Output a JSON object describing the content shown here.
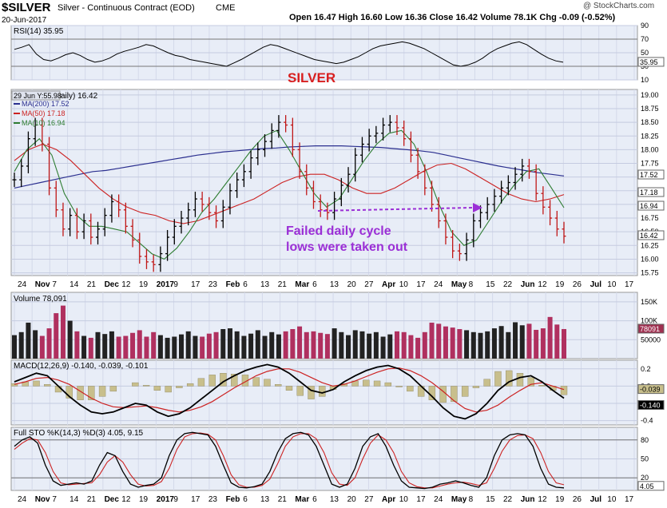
{
  "header": {
    "symbol": "$SILVER",
    "description": "Silver - Continuous Contract (EOD)",
    "exchange": "CME",
    "date": "20-Jun-2017",
    "watermark": "@ StockCharts.com",
    "ohlc_text": "Open 16.47  High 16.60  Low 16.36  Close 16.42  Volume 78.1K  Chg -0.09 (-0.52%)",
    "open": 16.47,
    "high": 16.6,
    "low": 16.36,
    "close": 16.42,
    "volume": "78.1K",
    "change": "-0.09 (-0.52%)"
  },
  "colors": {
    "price_bars": "#000000",
    "ma200": "#2b2f8f",
    "ma50": "#cc2222",
    "ma10": "#2e7d32",
    "volume_up": "#222222",
    "volume_down": "#b0305f",
    "annotation_silver": "#d81f1f",
    "annotation_text": "#9b2fd6",
    "annotation_arrow": "#9b2fd6",
    "panel_bg": "#e8edf7",
    "macd_hist": "#c8bf8c",
    "sto_d": "#cc2222"
  },
  "annotations": {
    "title": "SILVER",
    "note_line1": "Failed daily cycle",
    "note_line2": "lows were taken out"
  },
  "chart_data": [
    {
      "type": "line",
      "panel": "RSI",
      "legend": "RSI(14) 35.95",
      "ylim": [
        10,
        90
      ],
      "ticks": [
        10,
        30,
        50,
        70,
        90
      ],
      "last_value_label": "35.95",
      "series": [
        {
          "name": "RSI(14)",
          "values": [
            55,
            58,
            62,
            48,
            40,
            38,
            42,
            47,
            50,
            46,
            40,
            36,
            38,
            42,
            48,
            52,
            55,
            58,
            62,
            60,
            55,
            50,
            46,
            44,
            40,
            38,
            36,
            34,
            32,
            30,
            35,
            40,
            46,
            52,
            58,
            62,
            60,
            56,
            52,
            48,
            44,
            40,
            38,
            36,
            34,
            36,
            40,
            44,
            50,
            56,
            60,
            62,
            64,
            66,
            64,
            60,
            56,
            50,
            44,
            38,
            32,
            30,
            32,
            36,
            42,
            50,
            56,
            60,
            64,
            66,
            62,
            55,
            48,
            42,
            38,
            36
          ]
        }
      ]
    },
    {
      "type": "ohlc",
      "panel": "Price",
      "overlay_label": "29 Jun Y:55.98",
      "legend_title": "aily) 16.42",
      "ylim": [
        15.7,
        19.1
      ],
      "ticks": [
        15.75,
        16.0,
        16.25,
        16.5,
        16.75,
        17.0,
        17.25,
        17.5,
        17.75,
        18.0,
        18.25,
        18.5,
        18.75,
        19.0
      ],
      "x_labels": [
        "24",
        "Nov",
        "7",
        "14",
        "21",
        "Dec",
        "12",
        "19",
        "2017",
        "9",
        "17",
        "23",
        "Feb",
        "6",
        "13",
        "21",
        "Mar",
        "6",
        "13",
        "20",
        "27",
        "Apr",
        "10",
        "17",
        "24",
        "May",
        "8",
        "15",
        "22",
        "Jun",
        "12",
        "19",
        "26",
        "Jul",
        "10",
        "17"
      ],
      "close": [
        17.45,
        17.7,
        18.2,
        18.45,
        18.1,
        17.3,
        16.9,
        16.55,
        16.8,
        16.5,
        16.7,
        16.4,
        16.55,
        16.8,
        17.05,
        16.9,
        16.6,
        16.35,
        16.05,
        15.95,
        15.9,
        16.1,
        16.4,
        16.6,
        16.75,
        16.9,
        17.1,
        17.0,
        16.85,
        16.7,
        16.95,
        17.25,
        17.45,
        17.6,
        17.85,
        18.0,
        18.15,
        18.35,
        18.5,
        18.45,
        18.0,
        17.6,
        17.3,
        17.05,
        16.9,
        16.85,
        17.1,
        17.35,
        17.55,
        17.9,
        18.1,
        18.25,
        18.3,
        18.45,
        18.5,
        18.4,
        18.2,
        17.9,
        17.6,
        17.3,
        17.0,
        16.7,
        16.4,
        16.15,
        16.1,
        16.35,
        16.7,
        16.85,
        17.0,
        17.15,
        17.3,
        17.4,
        17.55,
        17.7,
        17.6,
        17.2,
        16.95,
        16.75,
        16.55,
        16.42
      ],
      "high_low_spread": 0.22,
      "series": [
        {
          "name": "MA(200) 17.52",
          "values": [
            17.3,
            17.35,
            17.4,
            17.45,
            17.5,
            17.55,
            17.6,
            17.62,
            17.66,
            17.7,
            17.74,
            17.78,
            17.82,
            17.86,
            17.9,
            17.93,
            17.96,
            17.98,
            18.0,
            18.02,
            18.03,
            18.05,
            18.06,
            18.07,
            18.07,
            18.07,
            18.06,
            18.05,
            18.04,
            18.02,
            18.0,
            17.98,
            17.95,
            17.9,
            17.85,
            17.8,
            17.75,
            17.7,
            17.66,
            17.62,
            17.58,
            17.55,
            17.52
          ]
        },
        {
          "name": "MA(50) 17.18",
          "values": [
            17.8,
            18.0,
            18.1,
            18.0,
            17.8,
            17.55,
            17.3,
            17.1,
            16.95,
            16.85,
            16.8,
            16.7,
            16.65,
            16.7,
            16.8,
            16.9,
            17.0,
            17.1,
            17.25,
            17.4,
            17.5,
            17.55,
            17.55,
            17.45,
            17.3,
            17.2,
            17.2,
            17.3,
            17.45,
            17.6,
            17.72,
            17.75,
            17.65,
            17.5,
            17.35,
            17.2,
            17.1,
            17.05,
            17.1,
            17.18
          ]
        },
        {
          "name": "MA(10) 16.94",
          "values": [
            17.6,
            18.0,
            18.2,
            17.9,
            17.2,
            16.8,
            16.6,
            16.6,
            16.55,
            16.5,
            16.3,
            16.1,
            16.0,
            16.2,
            16.5,
            16.85,
            17.1,
            17.4,
            17.7,
            18.0,
            18.25,
            18.35,
            18.0,
            17.6,
            17.2,
            16.95,
            17.1,
            17.45,
            17.8,
            18.1,
            18.3,
            18.35,
            18.1,
            17.6,
            17.0,
            16.5,
            16.25,
            16.35,
            16.7,
            17.05,
            17.35,
            17.6,
            17.65,
            17.3,
            16.94
          ]
        }
      ],
      "right_labels": [
        "17.52",
        "17.18",
        "16.94",
        "16.42"
      ]
    },
    {
      "type": "bar",
      "panel": "Volume",
      "legend": "Volume 78,091",
      "ylim": [
        0,
        175000
      ],
      "ticks": [
        50000,
        100000,
        150000
      ],
      "tick_labels": [
        "50000",
        "100K",
        "150K"
      ],
      "last_value_label": "78091",
      "values": [
        62000,
        70000,
        95000,
        75000,
        60000,
        80000,
        120000,
        140000,
        100000,
        72000,
        60000,
        55000,
        70000,
        65000,
        72000,
        58000,
        60000,
        68000,
        75000,
        58000,
        70000,
        62000,
        55000,
        58000,
        64000,
        72000,
        60000,
        58000,
        66000,
        70000,
        78000,
        80000,
        72000,
        60000,
        66000,
        75000,
        60000,
        70000,
        64000,
        72000,
        78000,
        85000,
        70000,
        72000,
        68000,
        65000,
        80000,
        70000,
        62000,
        75000,
        72000,
        66000,
        70000,
        58000,
        64000,
        72000,
        70000,
        62000,
        55000,
        70000,
        95000,
        92000,
        85000,
        82000,
        78000,
        75000,
        70000,
        68000,
        72000,
        80000,
        86000,
        70000,
        96000,
        88000,
        92000,
        76000,
        80000,
        110000,
        90000,
        78091
      ],
      "colors_pattern": "alternating up/down by close change"
    },
    {
      "type": "line",
      "panel": "MACD",
      "legend": "MACD(12,26,9) -0.140, -0.039, -0.101",
      "ylim": [
        -0.45,
        0.3
      ],
      "ticks": [
        -0.4,
        -0.2,
        0.0,
        0.2
      ],
      "last_value_labels": [
        "-0.039",
        "-0.140"
      ],
      "series": [
        {
          "name": "MACD",
          "values": [
            0.05,
            0.1,
            0.15,
            0.12,
            0.0,
            -0.12,
            -0.22,
            -0.3,
            -0.32,
            -0.3,
            -0.25,
            -0.2,
            -0.22,
            -0.3,
            -0.35,
            -0.32,
            -0.25,
            -0.15,
            -0.05,
            0.05,
            0.12,
            0.18,
            0.22,
            0.25,
            0.22,
            0.15,
            0.05,
            -0.05,
            -0.08,
            -0.04,
            0.05,
            0.12,
            0.18,
            0.22,
            0.24,
            0.2,
            0.12,
            0.0,
            -0.12,
            -0.25,
            -0.35,
            -0.38,
            -0.32,
            -0.2,
            -0.05,
            0.05,
            0.1,
            0.12,
            0.05,
            -0.05,
            -0.14
          ]
        },
        {
          "name": "Signal",
          "values": [
            0.02,
            0.05,
            0.09,
            0.1,
            0.07,
            0.02,
            -0.06,
            -0.14,
            -0.2,
            -0.24,
            -0.25,
            -0.24,
            -0.23,
            -0.25,
            -0.28,
            -0.3,
            -0.28,
            -0.24,
            -0.18,
            -0.1,
            -0.02,
            0.05,
            0.12,
            0.17,
            0.2,
            0.2,
            0.16,
            0.1,
            0.04,
            0.0,
            0.02,
            0.06,
            0.11,
            0.16,
            0.2,
            0.21,
            0.18,
            0.12,
            0.04,
            -0.06,
            -0.17,
            -0.26,
            -0.3,
            -0.28,
            -0.22,
            -0.13,
            -0.05,
            0.02,
            0.04,
            0.0,
            -0.04
          ]
        }
      ],
      "histogram": [
        0.03,
        0.05,
        0.06,
        0.02,
        -0.07,
        -0.14,
        -0.16,
        -0.16,
        -0.12,
        -0.06,
        0.0,
        0.04,
        0.01,
        -0.05,
        -0.07,
        -0.02,
        0.03,
        0.09,
        0.13,
        0.15,
        0.14,
        0.13,
        0.1,
        0.08,
        0.02,
        -0.05,
        -0.11,
        -0.15,
        -0.12,
        -0.04,
        0.03,
        0.06,
        0.07,
        0.06,
        0.04,
        -0.01,
        -0.06,
        -0.12,
        -0.16,
        -0.19,
        -0.18,
        -0.12,
        -0.02,
        0.08,
        0.17,
        0.18,
        0.15,
        0.1,
        0.01,
        -0.05,
        -0.1
      ]
    },
    {
      "type": "line",
      "panel": "Stochastic",
      "legend": "Full STO %K(14,3) %D(3) 4.05, 9.15",
      "ylim": [
        0,
        100
      ],
      "ticks": [
        20,
        50,
        80
      ],
      "last_value_label": "4.05",
      "series": [
        {
          "name": "%K",
          "values": [
            70,
            80,
            85,
            75,
            40,
            15,
            8,
            10,
            12,
            10,
            15,
            40,
            60,
            55,
            30,
            10,
            5,
            8,
            10,
            20,
            55,
            80,
            90,
            92,
            90,
            88,
            70,
            40,
            12,
            5,
            4,
            6,
            10,
            30,
            60,
            82,
            90,
            92,
            88,
            70,
            40,
            10,
            5,
            10,
            35,
            70,
            85,
            90,
            70,
            40,
            15,
            5,
            4,
            3,
            5,
            10,
            12,
            15,
            12,
            8,
            5,
            20,
            55,
            80,
            88,
            90,
            88,
            70,
            35,
            10,
            5,
            4
          ]
        },
        {
          "name": "%D",
          "values": [
            65,
            75,
            82,
            80,
            60,
            30,
            12,
            9,
            10,
            11,
            12,
            25,
            45,
            55,
            45,
            25,
            10,
            7,
            8,
            14,
            35,
            65,
            85,
            90,
            91,
            89,
            80,
            55,
            25,
            9,
            5,
            5,
            8,
            18,
            42,
            70,
            85,
            90,
            90,
            82,
            60,
            28,
            10,
            8,
            20,
            50,
            75,
            88,
            80,
            60,
            30,
            12,
            6,
            4,
            4,
            7,
            10,
            12,
            13,
            11,
            8,
            12,
            35,
            62,
            80,
            87,
            88,
            82,
            60,
            30,
            12,
            9
          ]
        }
      ]
    }
  ]
}
